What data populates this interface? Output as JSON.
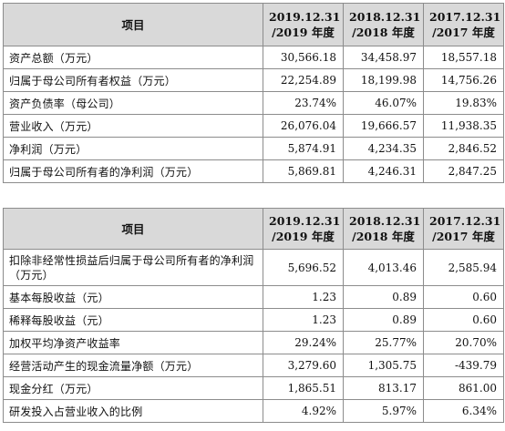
{
  "table1": {
    "headers": {
      "item": "项目",
      "col1": [
        "2019.12.31",
        "/2019 年度"
      ],
      "col2": [
        "2018.12.31",
        "/2018 年度"
      ],
      "col3": [
        "2017.12.31",
        "/2017 年度"
      ]
    },
    "rows": [
      {
        "label": "资产总额（万元）",
        "v1": "30,566.18",
        "v2": "34,458.97",
        "v3": "18,557.18"
      },
      {
        "label": "归属于母公司所有者权益（万元）",
        "v1": "22,254.89",
        "v2": "18,199.98",
        "v3": "14,756.26"
      },
      {
        "label": "资产负债率（母公司）",
        "v1": "23.74%",
        "v2": "46.07%",
        "v3": "19.83%"
      },
      {
        "label": "营业收入（万元）",
        "v1": "26,076.04",
        "v2": "19,666.57",
        "v3": "11,938.35"
      },
      {
        "label": "净利润（万元）",
        "v1": "5,874.91",
        "v2": "4,234.35",
        "v3": "2,846.52"
      },
      {
        "label": "归属于母公司所有者的净利润（万元）",
        "v1": "5,869.81",
        "v2": "4,246.31",
        "v3": "2,847.25"
      }
    ]
  },
  "table2": {
    "headers": {
      "item": "项目",
      "col1": [
        "2019.12.31",
        "/2019 年度"
      ],
      "col2": [
        "2018.12.31",
        "/2018 年度"
      ],
      "col3": [
        "2017.12.31",
        "/2017 年度"
      ]
    },
    "rows": [
      {
        "label": "扣除非经常性损益后归属于母公司所有者的净利润（万元）",
        "v1": "5,696.52",
        "v2": "4,013.46",
        "v3": "2,585.94"
      },
      {
        "label": "基本每股收益（元）",
        "v1": "1.23",
        "v2": "0.89",
        "v3": "0.60"
      },
      {
        "label": "稀释每股收益（元）",
        "v1": "1.23",
        "v2": "0.89",
        "v3": "0.60"
      },
      {
        "label": "加权平均净资产收益率",
        "v1": "29.24%",
        "v2": "25.77%",
        "v3": "20.70%"
      },
      {
        "label": "经营活动产生的现金流量净额（万元）",
        "v1": "3,279.60",
        "v2": "1,305.75",
        "v3": "-439.79"
      },
      {
        "label": "现金分红（万元）",
        "v1": "1,865.51",
        "v2": "813.17",
        "v3": "861.00"
      },
      {
        "label": "研发投入占营业收入的比例",
        "v1": "4.92%",
        "v2": "5.97%",
        "v3": "6.34%"
      }
    ]
  }
}
